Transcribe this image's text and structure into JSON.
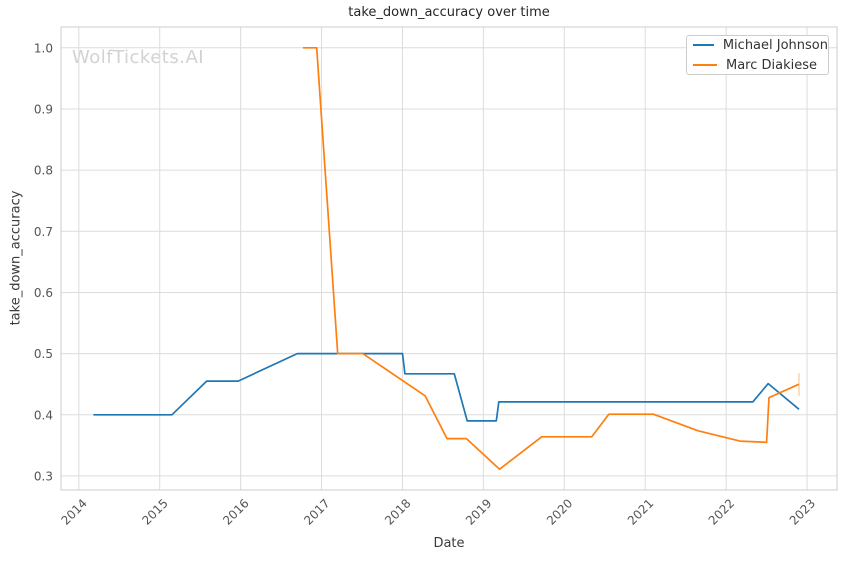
{
  "watermark": "WolfTickets.AI",
  "chart_data": {
    "type": "line",
    "title": "take_down_accuracy over time",
    "xlabel": "Date",
    "ylabel": "take_down_accuracy",
    "xlim": [
      2013.78,
      2023.37
    ],
    "ylim": [
      0.277,
      1.034
    ],
    "xticks": [
      2014,
      2015,
      2016,
      2017,
      2018,
      2019,
      2020,
      2021,
      2022,
      2023
    ],
    "yticks": [
      0.3,
      0.4,
      0.5,
      0.6,
      0.7,
      0.8,
      0.9,
      1.0
    ],
    "grid": true,
    "legend_position": "upper right",
    "colors": {
      "grid": "#dcdcdc",
      "spine": "#cccccc",
      "tick_label": "#555555",
      "text": "#3a3a3a",
      "watermark": "#d2d2d2",
      "background": "#ffffff"
    },
    "series": [
      {
        "name": "Michael Johnson",
        "color": "#1f77b4",
        "points": [
          [
            2014.18,
            0.4
          ],
          [
            2015.15,
            0.4
          ],
          [
            2015.58,
            0.455
          ],
          [
            2015.97,
            0.455
          ],
          [
            2016.7,
            0.5
          ],
          [
            2018.0,
            0.5
          ],
          [
            2018.03,
            0.467
          ],
          [
            2018.64,
            0.467
          ],
          [
            2018.8,
            0.39
          ],
          [
            2019.16,
            0.39
          ],
          [
            2019.19,
            0.421
          ],
          [
            2022.33,
            0.421
          ],
          [
            2022.52,
            0.451
          ],
          [
            2022.9,
            0.409
          ]
        ]
      },
      {
        "name": "Marc Diakiese",
        "color": "#ff7f0e",
        "points": [
          [
            2016.77,
            1.0
          ],
          [
            2016.94,
            1.0
          ],
          [
            2017.2,
            0.5
          ],
          [
            2017.51,
            0.5
          ],
          [
            2018.28,
            0.431
          ],
          [
            2018.55,
            0.361
          ],
          [
            2018.79,
            0.361
          ],
          [
            2019.2,
            0.311
          ],
          [
            2019.72,
            0.364
          ],
          [
            2020.34,
            0.364
          ],
          [
            2020.55,
            0.401
          ],
          [
            2021.1,
            0.401
          ],
          [
            2021.65,
            0.374
          ],
          [
            2022.17,
            0.357
          ],
          [
            2022.5,
            0.355
          ],
          [
            2022.53,
            0.428
          ],
          [
            2022.9,
            0.45
          ]
        ],
        "end_tick": {
          "x": 2022.9,
          "y_from": 0.431,
          "y_to": 0.468
        }
      }
    ]
  }
}
